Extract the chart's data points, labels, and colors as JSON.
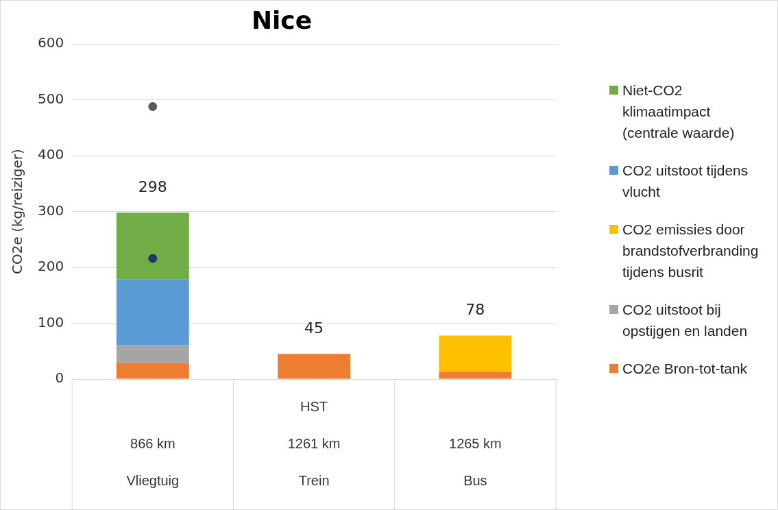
{
  "chart_data": {
    "type": "bar",
    "title": "Nice",
    "ylabel": "CO2e (kg/reiziger)",
    "categories": [
      "866 km\nVliegtuig",
      "HST\n1261 km\nTrein",
      "1265 km\nBus"
    ],
    "stacked": true,
    "ylim": [
      0,
      600
    ],
    "yticks": [
      0,
      100,
      200,
      300,
      400,
      500,
      600
    ],
    "grid": "y",
    "legend": "right",
    "totals": [
      "298",
      "45",
      "78"
    ],
    "series": [
      {
        "name": "CO2e Bron-tot-tank",
        "color": "#ed7d31",
        "values": [
          29,
          45,
          13
        ]
      },
      {
        "name": "CO2 uitstoot bij opstijgen en landen",
        "color": "#a5a5a5",
        "values": [
          32,
          null,
          null
        ]
      },
      {
        "name": "CO2 emissies door brandstofverbranding tijdens busrit",
        "color": "#ffc000",
        "values": [
          null,
          null,
          65
        ]
      },
      {
        "name": "CO2 uitstoot tijdens vlucht",
        "color": "#5b9bd5",
        "values": [
          118,
          null,
          null
        ]
      },
      {
        "name": "Niet-CO2 klimaatimpact (centrale waarde)",
        "color": "#70ad47",
        "values": [
          119,
          null,
          null
        ]
      },
      {
        "type": "scatter",
        "color": "#595959",
        "x": [
          "866 km\nVliegtuig"
        ],
        "values": [
          488
        ]
      },
      {
        "type": "scatter",
        "color": "#203864",
        "x": [
          "866 km\nVliegtuig"
        ],
        "values": [
          216
        ]
      }
    ]
  }
}
